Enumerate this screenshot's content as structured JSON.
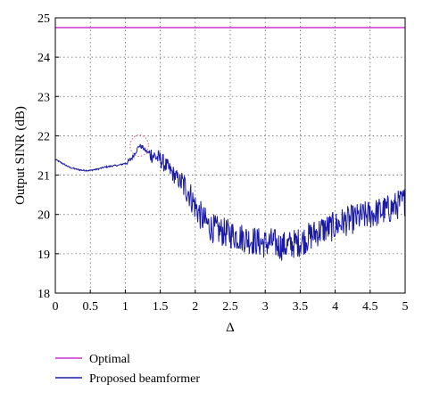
{
  "chart_data": {
    "type": "line",
    "xlabel": "Δ",
    "ylabel": "Output SINR (dB)",
    "xlim": [
      0,
      5
    ],
    "ylim": [
      18,
      25
    ],
    "xticks": [
      0,
      0.5,
      1,
      1.5,
      2,
      2.5,
      3,
      3.5,
      4,
      4.5,
      5
    ],
    "xtick_labels": [
      "0",
      "0.5",
      "1",
      "1.5",
      "2",
      "2.5",
      "3",
      "3.5",
      "4",
      "4.5",
      "5"
    ],
    "yticks": [
      18,
      19,
      20,
      21,
      22,
      23,
      24,
      25
    ],
    "ytick_labels": [
      "18",
      "19",
      "20",
      "21",
      "22",
      "23",
      "24",
      "25"
    ],
    "grid": true,
    "legend_position": "bottom-left, below plot",
    "annotation": {
      "type": "dotted-ellipse",
      "color": "#e05a7a",
      "center": [
        1.2,
        21.75
      ],
      "rx": 0.13,
      "ry": 0.27
    },
    "series": [
      {
        "name": "Optimal",
        "color": "#cc33cc",
        "x": [
          0,
          5
        ],
        "y": [
          24.75,
          24.75
        ]
      },
      {
        "name": "Proposed beamformer",
        "color": "#1a1aa6",
        "noisy": true,
        "x": [
          0,
          0.1,
          0.2,
          0.3,
          0.4,
          0.5,
          0.6,
          0.7,
          0.8,
          0.9,
          1.0,
          1.05,
          1.1,
          1.15,
          1.2,
          1.25,
          1.3,
          1.4,
          1.5,
          1.6,
          1.7,
          1.8,
          1.9,
          2.0,
          2.1,
          2.2,
          2.3,
          2.4,
          2.5,
          2.6,
          2.7,
          2.8,
          2.9,
          3.0,
          3.1,
          3.2,
          3.3,
          3.4,
          3.5,
          3.6,
          3.7,
          3.8,
          3.9,
          4.0,
          4.1,
          4.2,
          4.3,
          4.4,
          4.5,
          4.6,
          4.7,
          4.8,
          4.9,
          5.0
        ],
        "y": [
          21.4,
          21.3,
          21.2,
          21.15,
          21.12,
          21.12,
          21.15,
          21.2,
          21.23,
          21.25,
          21.3,
          21.35,
          21.45,
          21.6,
          21.75,
          21.7,
          21.6,
          21.5,
          21.4,
          21.2,
          21.0,
          20.8,
          20.6,
          20.2,
          19.9,
          19.7,
          19.6,
          19.55,
          19.5,
          19.45,
          19.4,
          19.35,
          19.3,
          19.25,
          19.3,
          19.2,
          19.2,
          19.25,
          19.3,
          19.4,
          19.5,
          19.6,
          19.65,
          19.7,
          19.8,
          19.85,
          19.9,
          19.95,
          20.0,
          20.05,
          20.1,
          20.15,
          20.25,
          20.35
        ]
      }
    ]
  }
}
